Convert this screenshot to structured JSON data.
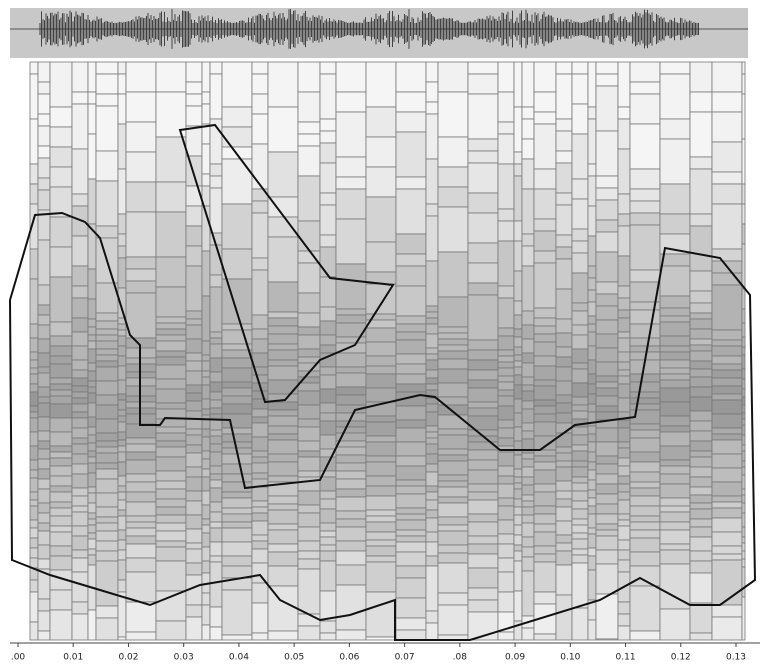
{
  "chart_data": {
    "type": "tiling",
    "xlim": [
      0,
      0.13
    ],
    "xticks": [
      {
        "value": 0,
        "label": ".00"
      },
      0.01,
      0.02,
      0.03,
      0.04,
      0.05,
      0.06,
      0.07,
      {
        "value": 0.08,
        "label": ".08"
      },
      0.09,
      {
        "value": 0.1,
        "label": "0.10"
      },
      0.11,
      0.12,
      0.13
    ]
  }
}
